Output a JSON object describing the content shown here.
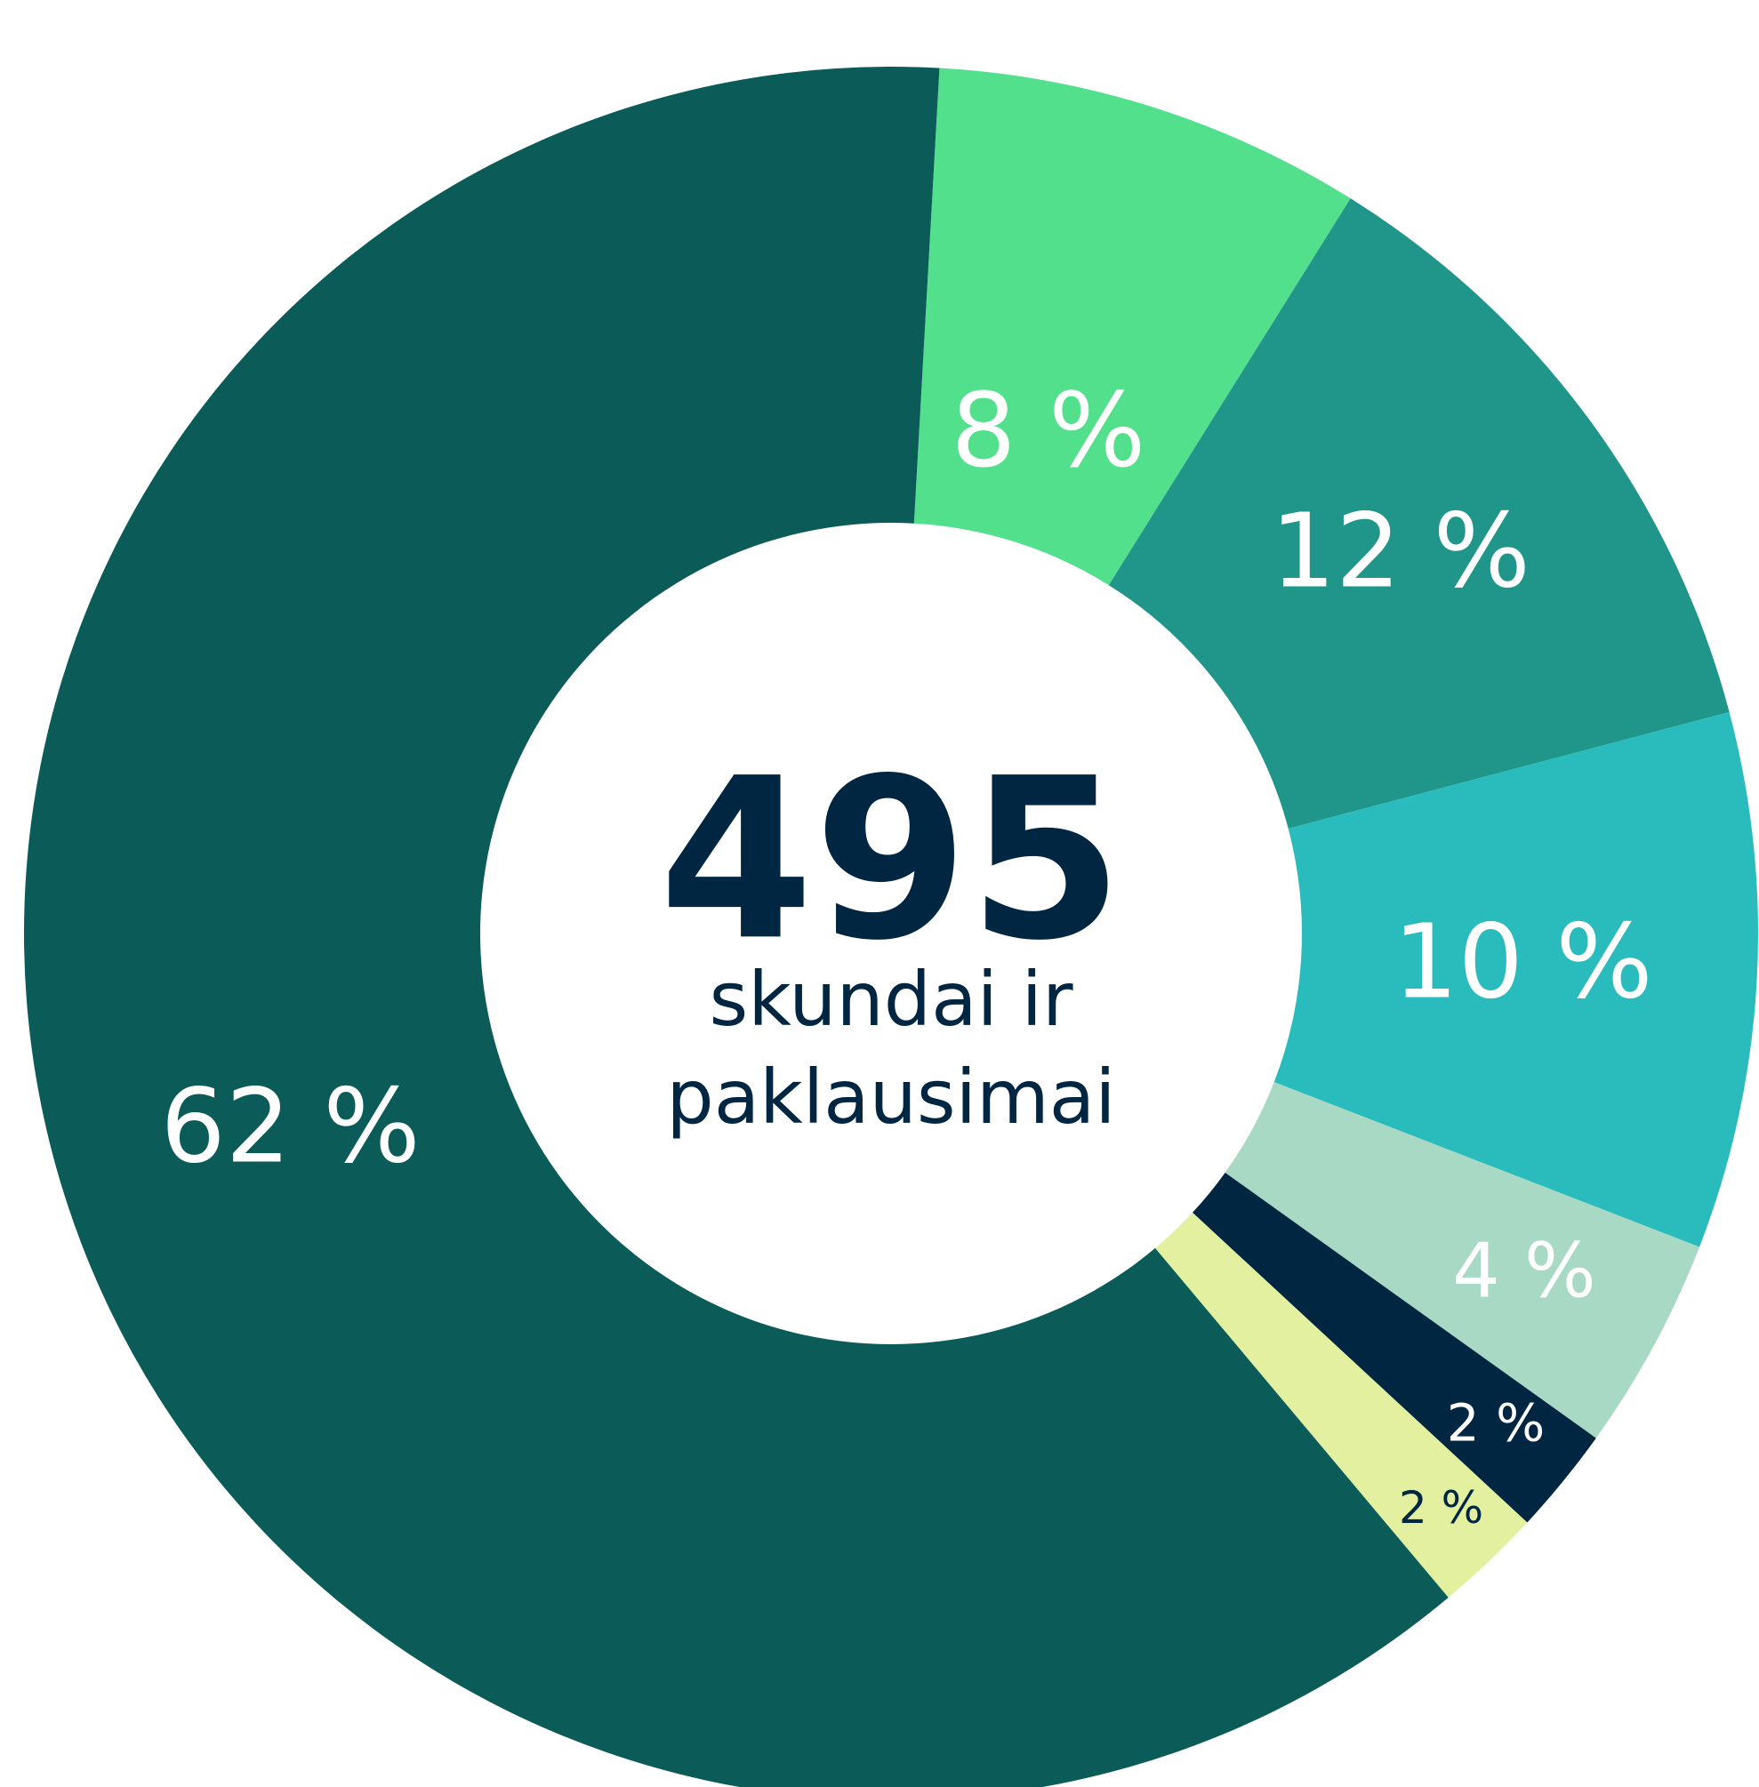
{
  "chart_data": {
    "type": "pie",
    "donut": true,
    "categories": [
      null,
      null,
      null,
      null,
      null,
      null,
      null
    ],
    "values": [
      8,
      12,
      10,
      4,
      2,
      2,
      62
    ],
    "value_labels": [
      "8 %",
      "12 %",
      "10 %",
      "4 %",
      "2 %",
      "2 %",
      "62 %"
    ],
    "colors": [
      "#52e08c",
      "#20958a",
      "#2abcbc",
      "#a8d9c4",
      "#002642",
      "#e3f0a0",
      "#0b5b58"
    ],
    "label_colors": [
      "#ffffff",
      "#ffffff",
      "#ffffff",
      "#ffffff",
      "#ffffff",
      "#002642",
      "#ffffff"
    ],
    "center_value": 495,
    "center_caption": [
      "skundai ir",
      "paklausimai"
    ]
  }
}
